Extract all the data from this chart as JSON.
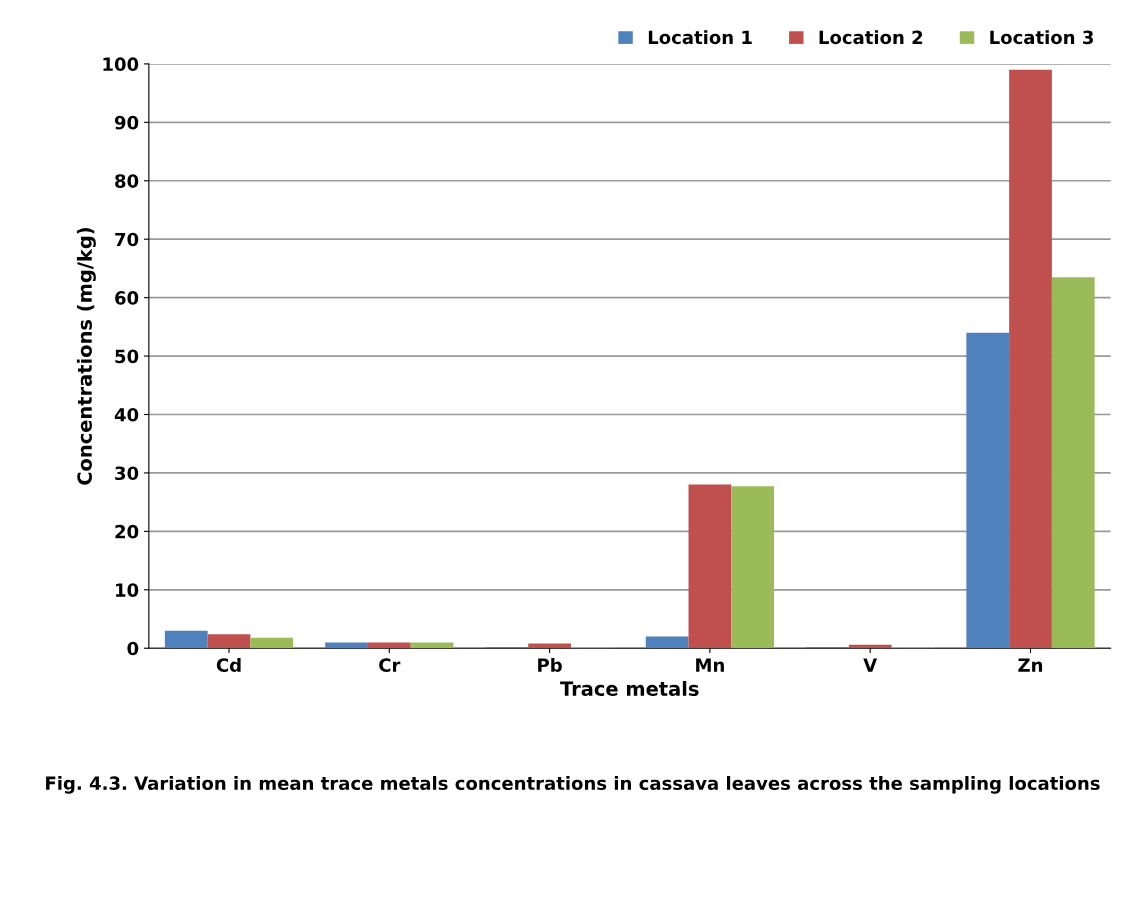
{
  "chart_data": {
    "type": "bar",
    "xlabel": "Trace metals",
    "ylabel": "Concentrations (mg/kg)",
    "categories": [
      "Cd",
      "Cr",
      "Pb",
      "Mn",
      "V",
      "Zn"
    ],
    "series": [
      {
        "name": "Location 1",
        "color": "#4f81bd",
        "values": [
          3,
          1,
          0.2,
          2,
          0.2,
          54
        ]
      },
      {
        "name": "Location 2",
        "color": "#c0504d",
        "values": [
          2.4,
          1,
          0.8,
          28,
          0.6,
          99
        ]
      },
      {
        "name": "Location 3",
        "color": "#9bbb59",
        "values": [
          1.8,
          1,
          0.2,
          27.7,
          0.2,
          63.5
        ]
      }
    ],
    "ylim": [
      0,
      100
    ],
    "yticks": [
      0,
      10,
      20,
      30,
      40,
      50,
      60,
      70,
      80,
      90,
      100
    ],
    "grid": "y",
    "legend": "top right",
    "annotations": [
      "Fig. 4.3. Variation in mean trace metals concentrations in cassava leaves across the sampling locations"
    ]
  }
}
